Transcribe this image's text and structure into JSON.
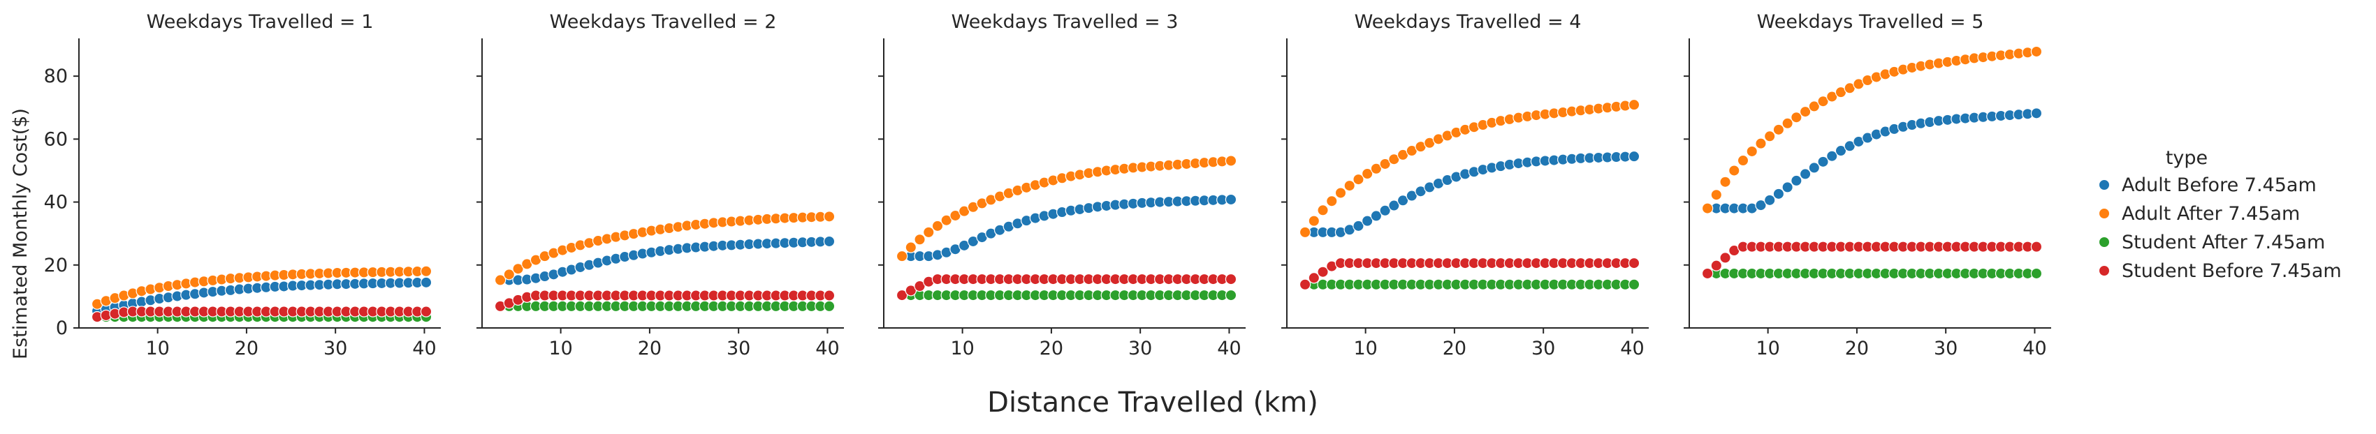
{
  "chart_data": {
    "type": "scatter",
    "facet_titles": [
      "Weekdays Travelled = 1",
      "Weekdays Travelled = 2",
      "Weekdays Travelled = 3",
      "Weekdays Travelled = 4",
      "Weekdays Travelled = 5"
    ],
    "xlabel": "Distance Travelled (km)",
    "ylabel": "Estimated Monthly Cost($)",
    "xlim": [
      1.15,
      41.85
    ],
    "ylim": [
      0,
      92
    ],
    "x_ticks": [
      10,
      20,
      30,
      40
    ],
    "y_ticks": [
      0,
      20,
      40,
      60,
      80
    ],
    "x": [
      3.2,
      4.2,
      5.2,
      6.2,
      7.2,
      8.2,
      9.2,
      10.2,
      11.2,
      12.2,
      13.2,
      14.2,
      15.2,
      16.2,
      17.2,
      18.2,
      19.2,
      20.2,
      21.2,
      22.2,
      23.2,
      24.2,
      25.2,
      26.2,
      27.2,
      28.2,
      29.2,
      30.2,
      31.2,
      32.2,
      33.2,
      34.2,
      35.2,
      36.2,
      37.2,
      38.2,
      39.2,
      40.2
    ],
    "legend": {
      "title": "type",
      "position": "center-right"
    },
    "series_colors": [
      "#1f77b4",
      "#ff7f0e",
      "#2ca02c",
      "#d62728"
    ],
    "panels": [
      {
        "series": [
          {
            "name": "Adult Before 7.45am",
            "values": [
              5.4,
              6.0,
              6.6,
              7.2,
              7.8,
              8.3,
              8.8,
              9.3,
              9.7,
              10.1,
              10.5,
              10.8,
              11.2,
              11.5,
              11.8,
              12.0,
              12.3,
              12.5,
              12.7,
              12.9,
              13.1,
              13.2,
              13.4,
              13.5,
              13.6,
              13.7,
              13.8,
              13.9,
              13.95,
              14.0,
              14.1,
              14.15,
              14.2,
              14.25,
              14.3,
              14.35,
              14.4,
              14.45
            ]
          },
          {
            "name": "Adult After 7.45am",
            "values": [
              7.6,
              8.6,
              9.5,
              10.3,
              11.0,
              11.7,
              12.3,
              12.8,
              13.3,
              13.7,
              14.1,
              14.5,
              14.8,
              15.1,
              15.4,
              15.7,
              15.9,
              16.1,
              16.3,
              16.5,
              16.7,
              16.85,
              17.0,
              17.1,
              17.2,
              17.3,
              17.4,
              17.5,
              17.55,
              17.6,
              17.65,
              17.7,
              17.75,
              17.8,
              17.85,
              17.9,
              17.95,
              18.0
            ]
          },
          {
            "name": "Student After 7.45am",
            "values": [
              3.5,
              3.5,
              3.5,
              3.5,
              3.5,
              3.5,
              3.5,
              3.5,
              3.5,
              3.5,
              3.5,
              3.5,
              3.5,
              3.5,
              3.5,
              3.5,
              3.5,
              3.5,
              3.5,
              3.5,
              3.5,
              3.5,
              3.5,
              3.5,
              3.5,
              3.5,
              3.5,
              3.5,
              3.5,
              3.5,
              3.5,
              3.5,
              3.5,
              3.5,
              3.5,
              3.5,
              3.5,
              3.5
            ]
          },
          {
            "name": "Student Before 7.45am",
            "values": [
              3.5,
              4.0,
              4.5,
              5.0,
              5.2,
              5.2,
              5.2,
              5.2,
              5.2,
              5.2,
              5.2,
              5.2,
              5.2,
              5.2,
              5.2,
              5.2,
              5.2,
              5.2,
              5.2,
              5.2,
              5.2,
              5.2,
              5.2,
              5.2,
              5.2,
              5.2,
              5.2,
              5.2,
              5.2,
              5.2,
              5.2,
              5.2,
              5.2,
              5.2,
              5.2,
              5.2,
              5.2,
              5.2
            ]
          }
        ]
      },
      {
        "series": [
          {
            "name": "Adult Before 7.45am",
            "values": [
              15.2,
              15.2,
              15.2,
              15.4,
              15.8,
              16.4,
              17.0,
              17.8,
              18.5,
              19.3,
              20.0,
              20.7,
              21.4,
              22.0,
              22.6,
              23.1,
              23.6,
              24.0,
              24.4,
              24.8,
              25.1,
              25.4,
              25.6,
              25.8,
              26.0,
              26.2,
              26.3,
              26.45,
              26.6,
              26.7,
              26.8,
              26.9,
              27.0,
              27.1,
              27.2,
              27.3,
              27.4,
              27.5
            ]
          },
          {
            "name": "Adult After 7.45am",
            "values": [
              15.2,
              17.0,
              18.8,
              20.3,
              21.6,
              22.8,
              23.8,
              24.7,
              25.5,
              26.3,
              27.0,
              27.7,
              28.3,
              28.9,
              29.4,
              29.9,
              30.4,
              30.9,
              31.3,
              31.7,
              32.1,
              32.5,
              32.8,
              33.1,
              33.4,
              33.6,
              33.8,
              34.0,
              34.2,
              34.4,
              34.6,
              34.75,
              34.9,
              35.0,
              35.1,
              35.2,
              35.3,
              35.4
            ]
          },
          {
            "name": "Student After 7.45am",
            "values": [
              6.9,
              6.9,
              6.9,
              6.9,
              6.9,
              6.9,
              6.9,
              6.9,
              6.9,
              6.9,
              6.9,
              6.9,
              6.9,
              6.9,
              6.9,
              6.9,
              6.9,
              6.9,
              6.9,
              6.9,
              6.9,
              6.9,
              6.9,
              6.9,
              6.9,
              6.9,
              6.9,
              6.9,
              6.9,
              6.9,
              6.9,
              6.9,
              6.9,
              6.9,
              6.9,
              6.9,
              6.9,
              6.9
            ]
          },
          {
            "name": "Student Before 7.45am",
            "values": [
              6.9,
              7.9,
              8.9,
              9.8,
              10.3,
              10.3,
              10.3,
              10.3,
              10.3,
              10.3,
              10.3,
              10.3,
              10.3,
              10.3,
              10.3,
              10.3,
              10.3,
              10.3,
              10.3,
              10.3,
              10.3,
              10.3,
              10.3,
              10.3,
              10.3,
              10.3,
              10.3,
              10.3,
              10.3,
              10.3,
              10.3,
              10.3,
              10.3,
              10.3,
              10.3,
              10.3,
              10.3,
              10.3
            ]
          }
        ]
      },
      {
        "series": [
          {
            "name": "Adult Before 7.45am",
            "values": [
              22.8,
              22.8,
              22.8,
              22.8,
              23.2,
              24.0,
              25.0,
              26.2,
              27.5,
              28.8,
              30.0,
              31.1,
              32.2,
              33.2,
              34.1,
              34.9,
              35.6,
              36.2,
              36.8,
              37.3,
              37.7,
              38.1,
              38.5,
              38.8,
              39.1,
              39.3,
              39.5,
              39.7,
              39.85,
              40.0,
              40.1,
              40.2,
              40.3,
              40.4,
              40.5,
              40.6,
              40.7,
              40.8
            ]
          },
          {
            "name": "Adult After 7.45am",
            "values": [
              22.8,
              25.6,
              28.1,
              30.4,
              32.4,
              34.2,
              35.7,
              37.1,
              38.4,
              39.6,
              40.7,
              41.8,
              42.8,
              43.7,
              44.6,
              45.4,
              46.2,
              46.9,
              47.6,
              48.2,
              48.7,
              49.2,
              49.6,
              50.0,
              50.3,
              50.6,
              50.9,
              51.1,
              51.3,
              51.5,
              51.7,
              51.9,
              52.1,
              52.3,
              52.5,
              52.7,
              52.9,
              53.1
            ]
          },
          {
            "name": "Student After 7.45am",
            "values": [
              10.4,
              10.4,
              10.4,
              10.4,
              10.4,
              10.4,
              10.4,
              10.4,
              10.4,
              10.4,
              10.4,
              10.4,
              10.4,
              10.4,
              10.4,
              10.4,
              10.4,
              10.4,
              10.4,
              10.4,
              10.4,
              10.4,
              10.4,
              10.4,
              10.4,
              10.4,
              10.4,
              10.4,
              10.4,
              10.4,
              10.4,
              10.4,
              10.4,
              10.4,
              10.4,
              10.4,
              10.4,
              10.4
            ]
          },
          {
            "name": "Student Before 7.45am",
            "values": [
              10.4,
              11.9,
              13.3,
              14.7,
              15.5,
              15.5,
              15.5,
              15.5,
              15.5,
              15.5,
              15.5,
              15.5,
              15.5,
              15.5,
              15.5,
              15.5,
              15.5,
              15.5,
              15.5,
              15.5,
              15.5,
              15.5,
              15.5,
              15.5,
              15.5,
              15.5,
              15.5,
              15.5,
              15.5,
              15.5,
              15.5,
              15.5,
              15.5,
              15.5,
              15.5,
              15.5,
              15.5,
              15.5
            ]
          }
        ]
      },
      {
        "series": [
          {
            "name": "Adult Before 7.45am",
            "values": [
              30.4,
              30.4,
              30.4,
              30.4,
              30.4,
              31.2,
              32.4,
              34.0,
              35.6,
              37.3,
              38.9,
              40.5,
              42.0,
              43.4,
              44.7,
              45.9,
              47.0,
              48.0,
              48.9,
              49.6,
              50.3,
              50.9,
              51.4,
              51.9,
              52.3,
              52.6,
              52.9,
              53.1,
              53.3,
              53.5,
              53.7,
              53.9,
              54.0,
              54.1,
              54.2,
              54.3,
              54.4,
              54.5
            ]
          },
          {
            "name": "Adult After 7.45am",
            "values": [
              30.4,
              34.0,
              37.4,
              40.3,
              42.9,
              45.2,
              47.2,
              49.0,
              50.6,
              52.1,
              53.6,
              55.0,
              56.3,
              57.6,
              58.8,
              60.0,
              61.1,
              62.1,
              63.0,
              63.8,
              64.5,
              65.2,
              65.8,
              66.3,
              66.8,
              67.2,
              67.6,
              67.9,
              68.2,
              68.5,
              68.8,
              69.1,
              69.4,
              69.7,
              70.0,
              70.3,
              70.6,
              70.9
            ]
          },
          {
            "name": "Student After 7.45am",
            "values": [
              13.8,
              13.8,
              13.8,
              13.8,
              13.8,
              13.8,
              13.8,
              13.8,
              13.8,
              13.8,
              13.8,
              13.8,
              13.8,
              13.8,
              13.8,
              13.8,
              13.8,
              13.8,
              13.8,
              13.8,
              13.8,
              13.8,
              13.8,
              13.8,
              13.8,
              13.8,
              13.8,
              13.8,
              13.8,
              13.8,
              13.8,
              13.8,
              13.8,
              13.8,
              13.8,
              13.8,
              13.8,
              13.8
            ]
          },
          {
            "name": "Student Before 7.45am",
            "values": [
              13.8,
              15.9,
              17.8,
              19.6,
              20.6,
              20.6,
              20.6,
              20.6,
              20.6,
              20.6,
              20.6,
              20.6,
              20.6,
              20.6,
              20.6,
              20.6,
              20.6,
              20.6,
              20.6,
              20.6,
              20.6,
              20.6,
              20.6,
              20.6,
              20.6,
              20.6,
              20.6,
              20.6,
              20.6,
              20.6,
              20.6,
              20.6,
              20.6,
              20.6,
              20.6,
              20.6,
              20.6,
              20.6
            ]
          }
        ]
      },
      {
        "series": [
          {
            "name": "Adult Before 7.45am",
            "values": [
              38.0,
              38.0,
              38.0,
              38.0,
              38.0,
              38.0,
              39.0,
              40.6,
              42.6,
              44.7,
              46.8,
              48.9,
              50.9,
              52.8,
              54.6,
              56.3,
              57.8,
              59.2,
              60.4,
              61.5,
              62.4,
              63.2,
              63.9,
              64.5,
              65.0,
              65.4,
              65.8,
              66.1,
              66.4,
              66.6,
              66.8,
              67.0,
              67.2,
              67.4,
              67.6,
              67.8,
              68.0,
              68.2
            ]
          },
          {
            "name": "Adult After 7.45am",
            "values": [
              38.0,
              42.3,
              46.4,
              50.0,
              53.2,
              56.1,
              58.6,
              60.9,
              63.0,
              65.0,
              66.9,
              68.7,
              70.4,
              72.0,
              73.5,
              74.9,
              76.2,
              77.5,
              78.7,
              79.7,
              80.6,
              81.4,
              82.1,
              82.7,
              83.2,
              83.7,
              84.1,
              84.5,
              84.9,
              85.3,
              85.7,
              86.0,
              86.3,
              86.6,
              86.9,
              87.2,
              87.5,
              87.8
            ]
          },
          {
            "name": "Student After 7.45am",
            "values": [
              17.3,
              17.3,
              17.3,
              17.3,
              17.3,
              17.3,
              17.3,
              17.3,
              17.3,
              17.3,
              17.3,
              17.3,
              17.3,
              17.3,
              17.3,
              17.3,
              17.3,
              17.3,
              17.3,
              17.3,
              17.3,
              17.3,
              17.3,
              17.3,
              17.3,
              17.3,
              17.3,
              17.3,
              17.3,
              17.3,
              17.3,
              17.3,
              17.3,
              17.3,
              17.3,
              17.3,
              17.3,
              17.3
            ]
          },
          {
            "name": "Student Before 7.45am",
            "values": [
              17.3,
              19.8,
              22.3,
              24.6,
              25.8,
              25.8,
              25.8,
              25.8,
              25.8,
              25.8,
              25.8,
              25.8,
              25.8,
              25.8,
              25.8,
              25.8,
              25.8,
              25.8,
              25.8,
              25.8,
              25.8,
              25.8,
              25.8,
              25.8,
              25.8,
              25.8,
              25.8,
              25.8,
              25.8,
              25.8,
              25.8,
              25.8,
              25.8,
              25.8,
              25.8,
              25.8,
              25.8,
              25.8
            ]
          }
        ]
      }
    ]
  }
}
